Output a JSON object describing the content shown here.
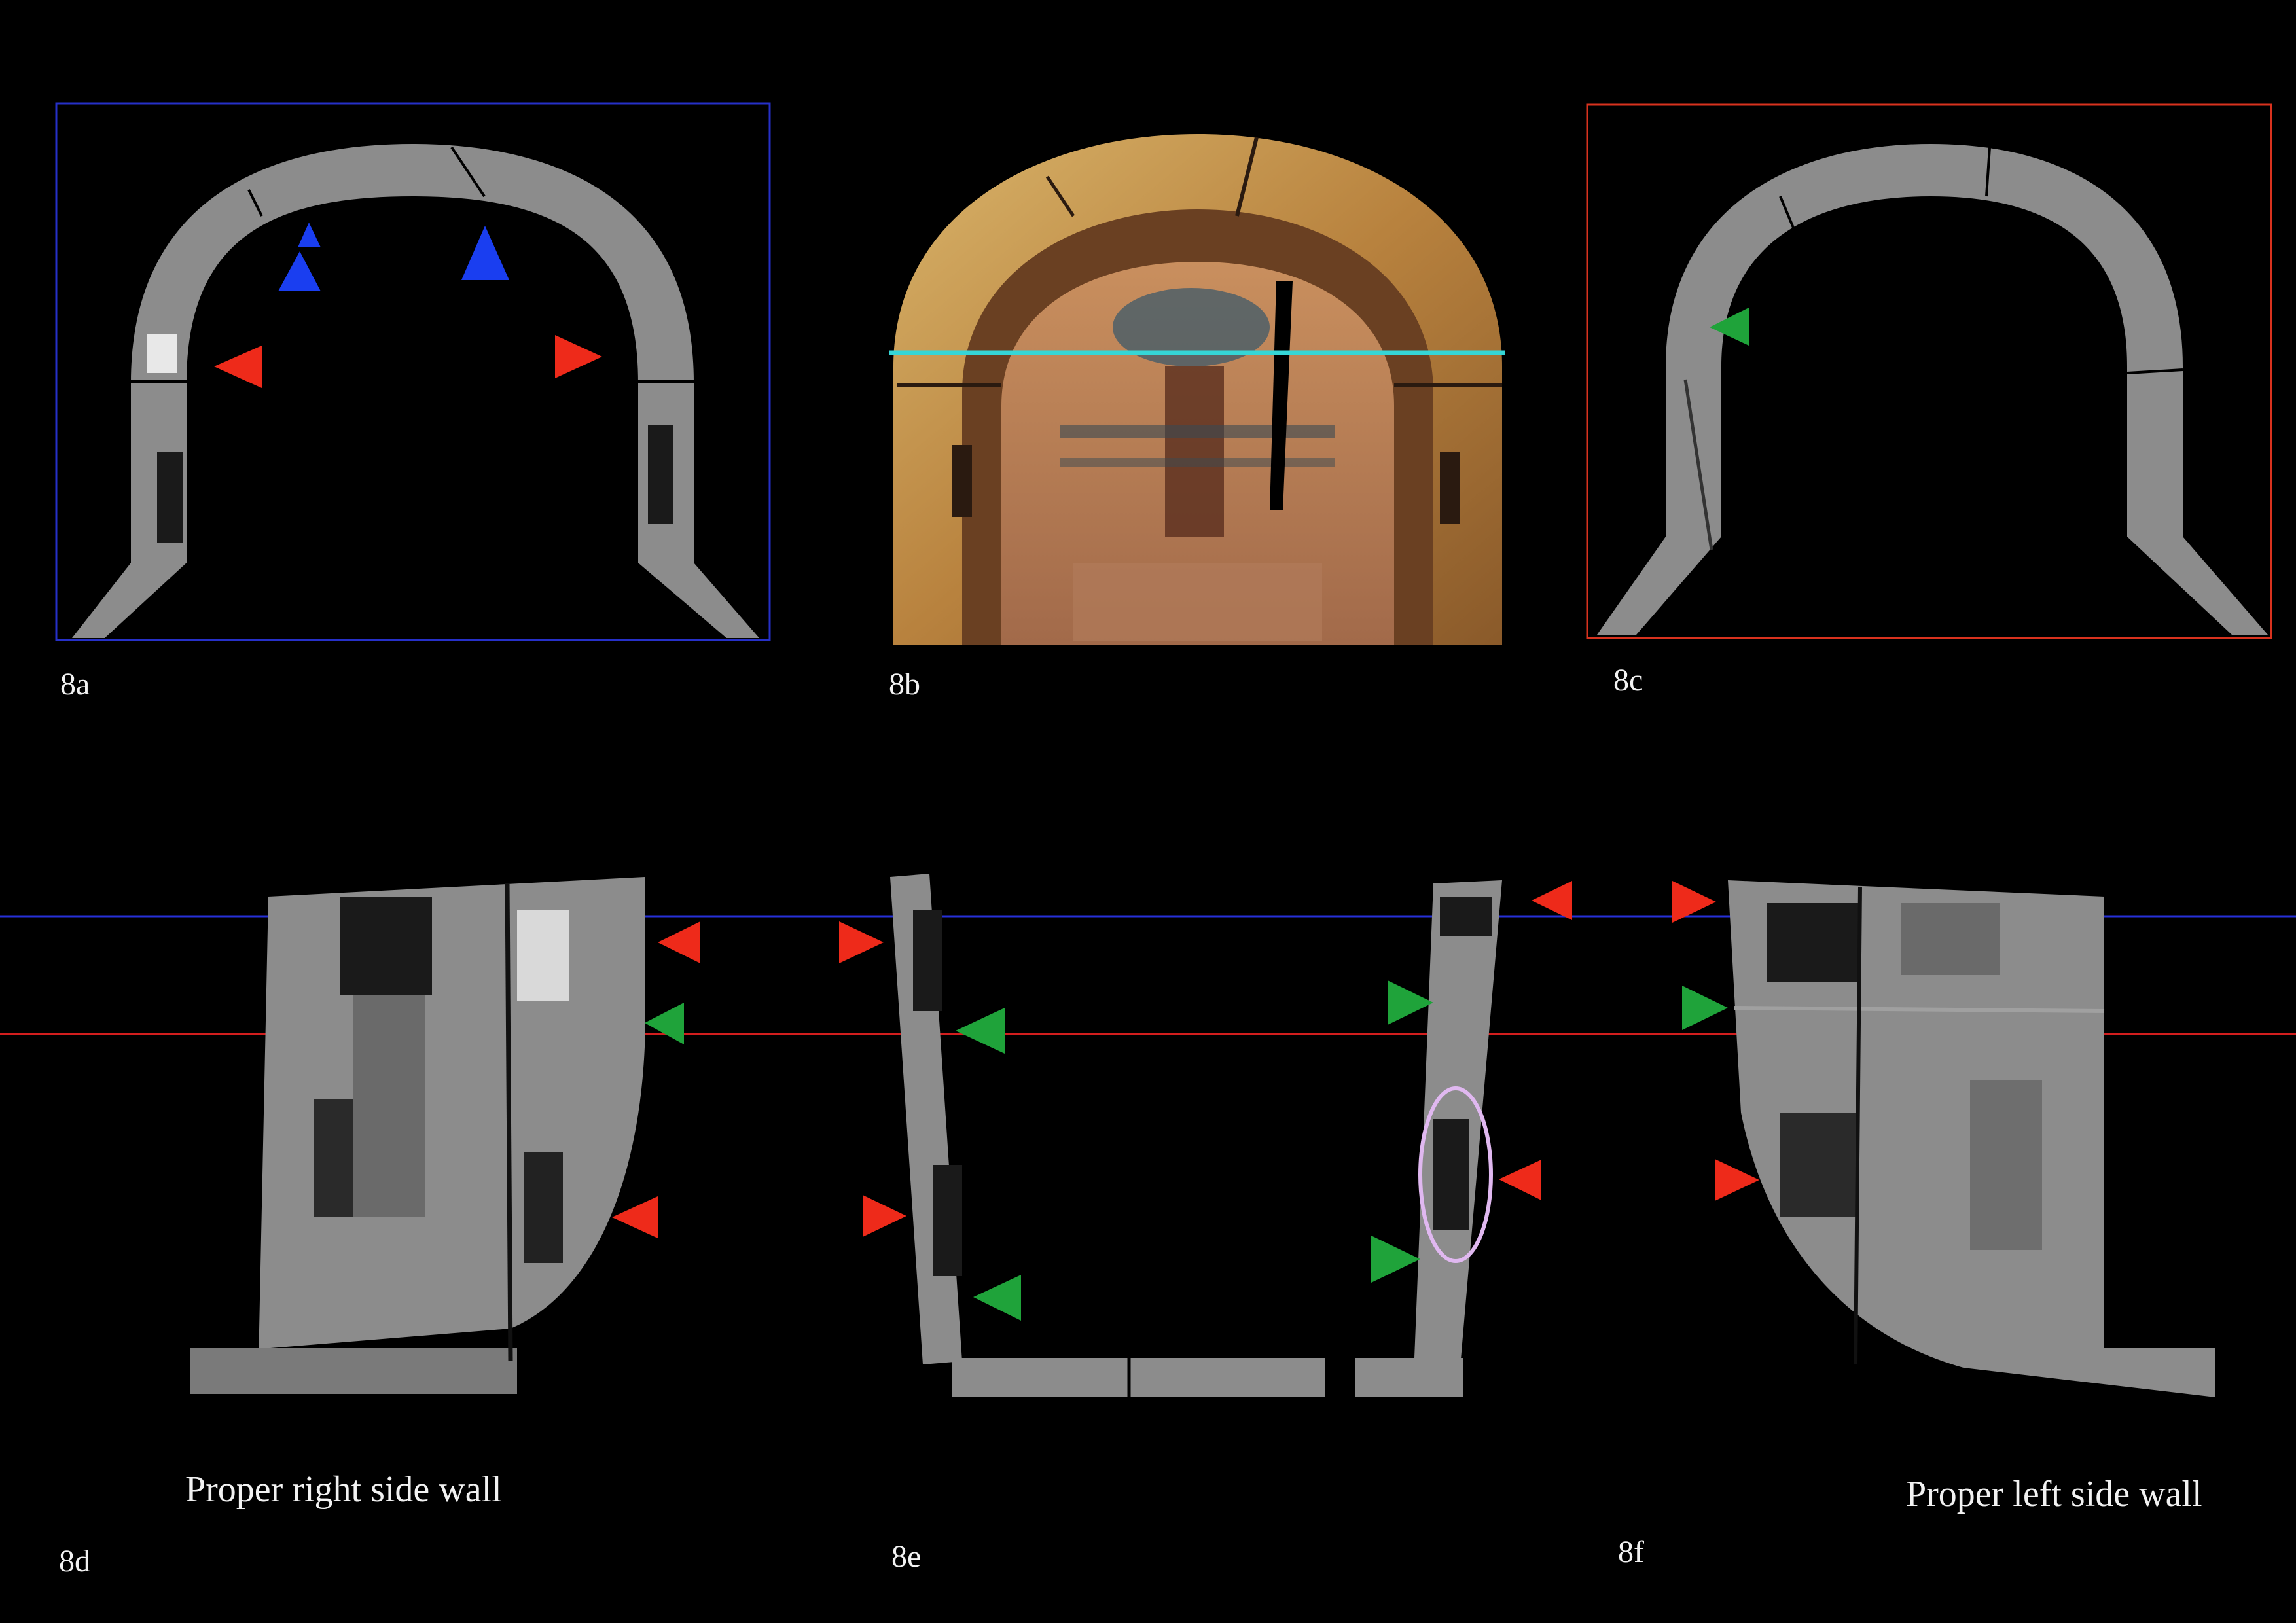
{
  "figure_labels": {
    "a": "8a",
    "b": "8b",
    "c": "8c",
    "d": "8d",
    "e": "8e",
    "f": "8f"
  },
  "captions": {
    "right_wall": "Proper right side wall",
    "left_wall": "Proper left side wall"
  },
  "colors": {
    "background": "#000000",
    "frame_8a": "#2630c8",
    "frame_8c": "#d8321e",
    "line_blue": "#2630d8",
    "line_red": "#d21e1e",
    "line_cyan": "#35d6d6",
    "marker_red": "#ee2a1a",
    "marker_blue": "#1a3ef0",
    "marker_green": "#1fa33a",
    "ellipse": "#e0b8f0",
    "ct_wood": "#8c8c8c",
    "ct_dark": "#3a3a3a",
    "painted_wood": "#c9a05a"
  }
}
